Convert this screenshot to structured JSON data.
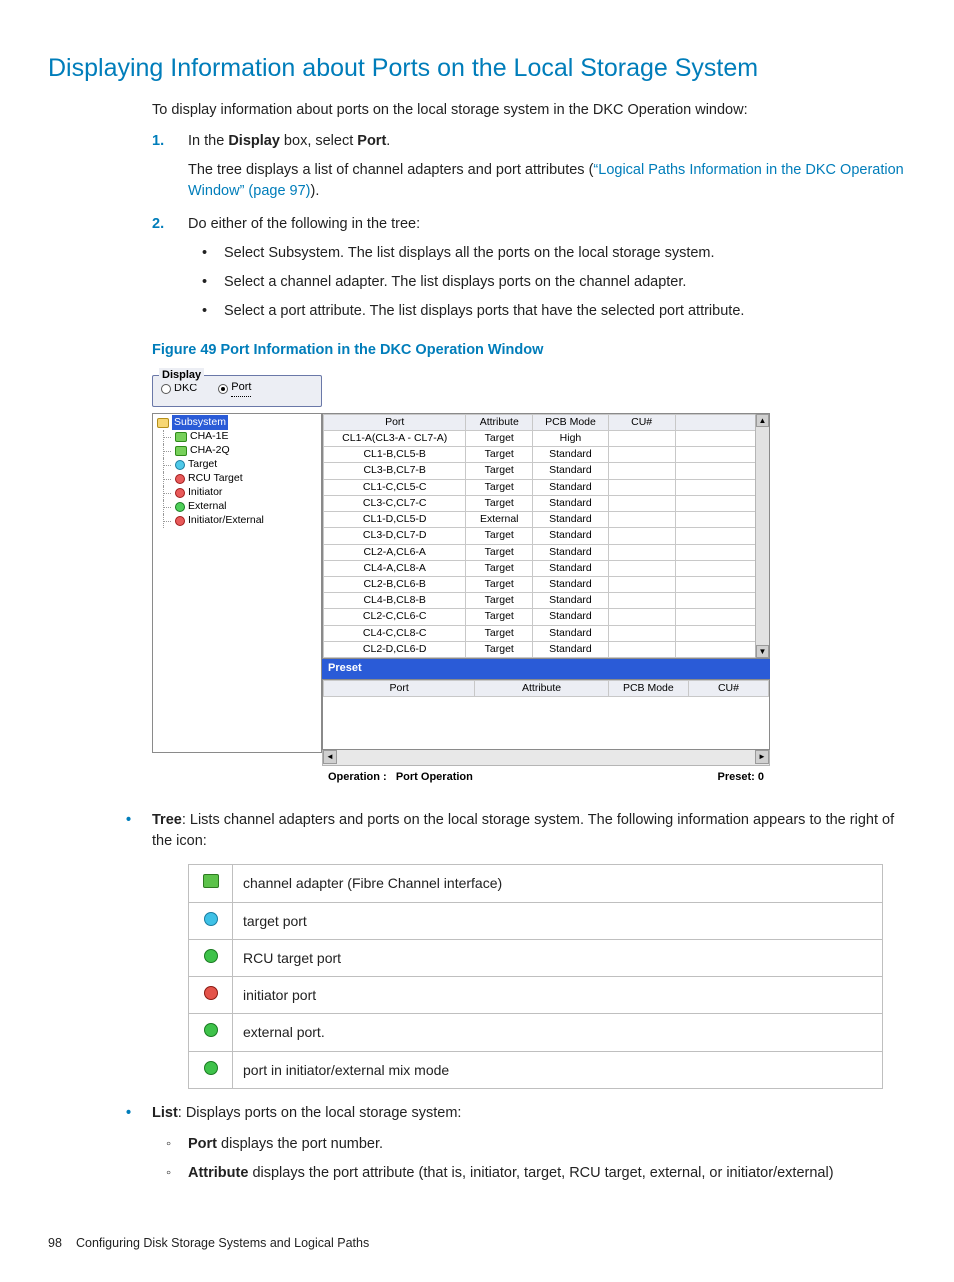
{
  "colors": {
    "accent": "#007dba",
    "link": "#007dba",
    "body": "#222222"
  },
  "heading": "Displaying Information about Ports on the Local Storage System",
  "intro": "To display information about ports on the local storage system in the DKC Operation window:",
  "steps": {
    "s1": {
      "num": "1.",
      "line1a": "In the ",
      "line1b": "Display",
      "line1c": " box, select ",
      "line1d": "Port",
      "line1e": ".",
      "line2a": "The tree displays a list of channel adapters and port attributes (",
      "link": "“Logical Paths Information in the DKC Operation Window” (page 97)",
      "line2b": ")."
    },
    "s2": {
      "num": "2.",
      "text": "Do either of the following in the tree:",
      "bullets": [
        "Select Subsystem. The list displays all the ports on the local storage system.",
        "Select a channel adapter. The list displays ports on the channel adapter.",
        "Select a port attribute. The list displays ports that have the selected port attribute."
      ]
    }
  },
  "figcaption": "Figure 49 Port Information in the DKC Operation Window",
  "shot": {
    "display_group": {
      "legend": "Display",
      "dkc": "DKC",
      "port": "Port"
    },
    "tree": [
      {
        "label": "Subsystem",
        "icon": "folder",
        "sel": true,
        "indent": 0
      },
      {
        "label": "CHA-1E",
        "icon": "green",
        "indent": 1
      },
      {
        "label": "CHA-2Q",
        "icon": "green",
        "indent": 1
      },
      {
        "label": "Target",
        "icon": "cyan",
        "indent": 1
      },
      {
        "label": "RCU Target",
        "icon": "red",
        "indent": 1
      },
      {
        "label": "Initiator",
        "icon": "red",
        "indent": 1
      },
      {
        "label": "External",
        "icon": "grn",
        "indent": 1
      },
      {
        "label": "Initiator/External",
        "icon": "red",
        "indent": 1
      }
    ],
    "grid": {
      "headers": [
        "Port",
        "Attribute",
        "PCB Mode",
        "CU#",
        ""
      ],
      "rows": [
        [
          "CL1-A(CL3-A - CL7-A)",
          "Target",
          "High",
          "",
          ""
        ],
        [
          "CL1-B,CL5-B",
          "Target",
          "Standard",
          "",
          ""
        ],
        [
          "CL3-B,CL7-B",
          "Target",
          "Standard",
          "",
          ""
        ],
        [
          "CL1-C,CL5-C",
          "Target",
          "Standard",
          "",
          ""
        ],
        [
          "CL3-C,CL7-C",
          "Target",
          "Standard",
          "",
          ""
        ],
        [
          "CL1-D,CL5-D",
          "External",
          "Standard",
          "",
          ""
        ],
        [
          "CL3-D,CL7-D",
          "Target",
          "Standard",
          "",
          ""
        ],
        [
          "CL2-A,CL6-A",
          "Target",
          "Standard",
          "",
          ""
        ],
        [
          "CL4-A,CL8-A",
          "Target",
          "Standard",
          "",
          ""
        ],
        [
          "CL2-B,CL6-B",
          "Target",
          "Standard",
          "",
          ""
        ],
        [
          "CL4-B,CL8-B",
          "Target",
          "Standard",
          "",
          ""
        ],
        [
          "CL2-C,CL6-C",
          "Target",
          "Standard",
          "",
          ""
        ],
        [
          "CL4-C,CL8-C",
          "Target",
          "Standard",
          "",
          ""
        ],
        [
          "CL2-D,CL6-D",
          "Target",
          "Standard",
          "",
          ""
        ]
      ]
    },
    "preset_header": "Preset",
    "preset_grid_headers": [
      "Port",
      "Attribute",
      "PCB Mode",
      "CU#"
    ],
    "op_label": "Operation :",
    "op_value": "Port Operation",
    "preset_label": "Preset: 0"
  },
  "below": {
    "tree_item": {
      "bold": "Tree",
      "text": ": Lists channel adapters and ports on the local storage system. The following information appears to the right of the icon:"
    },
    "legend": [
      {
        "icon": "green",
        "text": "channel adapter (Fibre Channel interface)"
      },
      {
        "icon": "cyan",
        "text": "target port"
      },
      {
        "icon": "grn",
        "text": "RCU target port"
      },
      {
        "icon": "red",
        "text": "initiator port"
      },
      {
        "icon": "grn",
        "text": "external port."
      },
      {
        "icon": "grn",
        "text": "port in initiator/external mix mode"
      }
    ],
    "list_item": {
      "bold": "List",
      "text": ": Displays ports on the local storage system:",
      "subs": [
        {
          "b": "Port",
          "t": " displays the port number."
        },
        {
          "b": "Attribute",
          "t": " displays the port attribute (that is, initiator, target, RCU target, external, or initiator/external)"
        }
      ]
    }
  },
  "footer": {
    "page": "98",
    "title": "Configuring Disk Storage Systems and Logical Paths"
  }
}
